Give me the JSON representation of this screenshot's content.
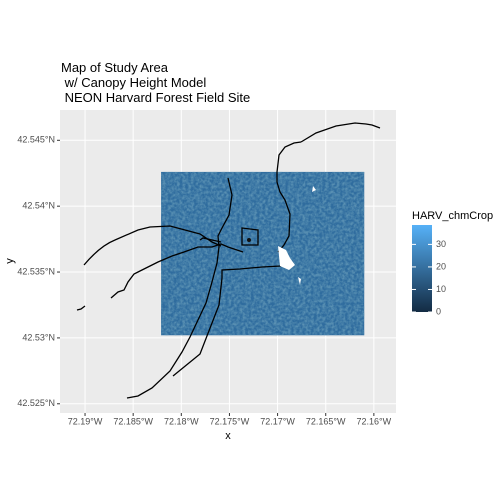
{
  "chart_data": {
    "type": "map",
    "title": [
      "Map of Study Area",
      " w/ Canopy Height Model",
      " NEON Harvard Forest Field Site"
    ],
    "x_label": "x",
    "y_label": "y",
    "xlim": [
      -72.1926,
      -72.1577
    ],
    "ylim": [
      42.5243,
      42.5473
    ],
    "xticks": [
      {
        "value": -72.19,
        "label": "72.19°W"
      },
      {
        "value": -72.185,
        "label": "72.185°W"
      },
      {
        "value": -72.18,
        "label": "72.18°W"
      },
      {
        "value": -72.175,
        "label": "72.175°W"
      },
      {
        "value": -72.17,
        "label": "72.17°W"
      },
      {
        "value": -72.165,
        "label": "72.165°W"
      },
      {
        "value": -72.16,
        "label": "72.16°W"
      }
    ],
    "yticks": [
      {
        "value": 42.525,
        "label": "42.525°N"
      },
      {
        "value": 42.53,
        "label": "42.53°N"
      },
      {
        "value": 42.535,
        "label": "42.535°N"
      },
      {
        "value": 42.54,
        "label": "42.54°N"
      },
      {
        "value": 42.545,
        "label": "42.545°N"
      }
    ],
    "raster_xlim": [
      -72.1821,
      -72.161
    ],
    "raster_ylim": [
      42.5302,
      42.5426
    ],
    "legend": {
      "title": "HARV_chmCrop",
      "limits": [
        0,
        38.6
      ],
      "ticks": [
        0,
        10,
        20,
        30
      ],
      "colors": [
        "#132B43",
        "#56B1F7"
      ]
    },
    "grid": true
  }
}
